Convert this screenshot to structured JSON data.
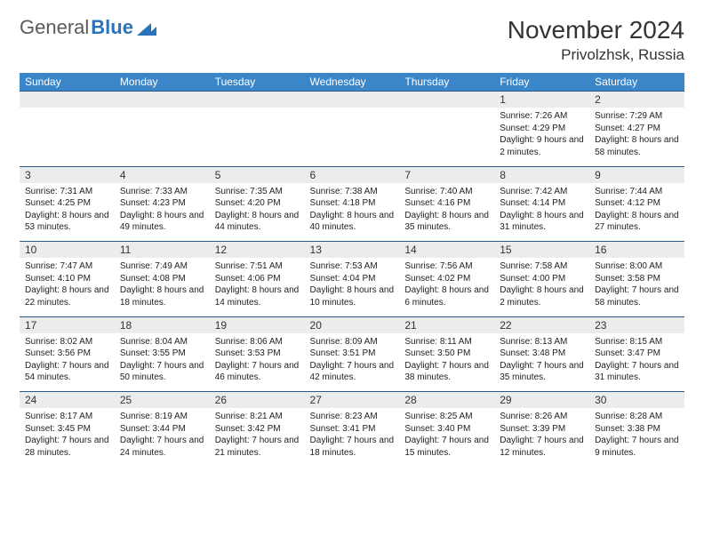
{
  "logo": {
    "text1": "General",
    "text2": "Blue"
  },
  "header": {
    "month": "November 2024",
    "location": "Privolzhsk, Russia"
  },
  "colors": {
    "header_bg": "#3a86c8",
    "header_text": "#ffffff",
    "daynum_bg": "#ececec",
    "border": "#2b5a8a",
    "logo_gray": "#5a5a5a",
    "logo_blue": "#2b73b8",
    "text": "#333333"
  },
  "weekdays": [
    "Sunday",
    "Monday",
    "Tuesday",
    "Wednesday",
    "Thursday",
    "Friday",
    "Saturday"
  ],
  "days": [
    {
      "n": 1,
      "sunrise": "7:26 AM",
      "sunset": "4:29 PM",
      "dayh": 9,
      "daym": 2
    },
    {
      "n": 2,
      "sunrise": "7:29 AM",
      "sunset": "4:27 PM",
      "dayh": 8,
      "daym": 58
    },
    {
      "n": 3,
      "sunrise": "7:31 AM",
      "sunset": "4:25 PM",
      "dayh": 8,
      "daym": 53
    },
    {
      "n": 4,
      "sunrise": "7:33 AM",
      "sunset": "4:23 PM",
      "dayh": 8,
      "daym": 49
    },
    {
      "n": 5,
      "sunrise": "7:35 AM",
      "sunset": "4:20 PM",
      "dayh": 8,
      "daym": 44
    },
    {
      "n": 6,
      "sunrise": "7:38 AM",
      "sunset": "4:18 PM",
      "dayh": 8,
      "daym": 40
    },
    {
      "n": 7,
      "sunrise": "7:40 AM",
      "sunset": "4:16 PM",
      "dayh": 8,
      "daym": 35
    },
    {
      "n": 8,
      "sunrise": "7:42 AM",
      "sunset": "4:14 PM",
      "dayh": 8,
      "daym": 31
    },
    {
      "n": 9,
      "sunrise": "7:44 AM",
      "sunset": "4:12 PM",
      "dayh": 8,
      "daym": 27
    },
    {
      "n": 10,
      "sunrise": "7:47 AM",
      "sunset": "4:10 PM",
      "dayh": 8,
      "daym": 22
    },
    {
      "n": 11,
      "sunrise": "7:49 AM",
      "sunset": "4:08 PM",
      "dayh": 8,
      "daym": 18
    },
    {
      "n": 12,
      "sunrise": "7:51 AM",
      "sunset": "4:06 PM",
      "dayh": 8,
      "daym": 14
    },
    {
      "n": 13,
      "sunrise": "7:53 AM",
      "sunset": "4:04 PM",
      "dayh": 8,
      "daym": 10
    },
    {
      "n": 14,
      "sunrise": "7:56 AM",
      "sunset": "4:02 PM",
      "dayh": 8,
      "daym": 6
    },
    {
      "n": 15,
      "sunrise": "7:58 AM",
      "sunset": "4:00 PM",
      "dayh": 8,
      "daym": 2
    },
    {
      "n": 16,
      "sunrise": "8:00 AM",
      "sunset": "3:58 PM",
      "dayh": 7,
      "daym": 58
    },
    {
      "n": 17,
      "sunrise": "8:02 AM",
      "sunset": "3:56 PM",
      "dayh": 7,
      "daym": 54
    },
    {
      "n": 18,
      "sunrise": "8:04 AM",
      "sunset": "3:55 PM",
      "dayh": 7,
      "daym": 50
    },
    {
      "n": 19,
      "sunrise": "8:06 AM",
      "sunset": "3:53 PM",
      "dayh": 7,
      "daym": 46
    },
    {
      "n": 20,
      "sunrise": "8:09 AM",
      "sunset": "3:51 PM",
      "dayh": 7,
      "daym": 42
    },
    {
      "n": 21,
      "sunrise": "8:11 AM",
      "sunset": "3:50 PM",
      "dayh": 7,
      "daym": 38
    },
    {
      "n": 22,
      "sunrise": "8:13 AM",
      "sunset": "3:48 PM",
      "dayh": 7,
      "daym": 35
    },
    {
      "n": 23,
      "sunrise": "8:15 AM",
      "sunset": "3:47 PM",
      "dayh": 7,
      "daym": 31
    },
    {
      "n": 24,
      "sunrise": "8:17 AM",
      "sunset": "3:45 PM",
      "dayh": 7,
      "daym": 28
    },
    {
      "n": 25,
      "sunrise": "8:19 AM",
      "sunset": "3:44 PM",
      "dayh": 7,
      "daym": 24
    },
    {
      "n": 26,
      "sunrise": "8:21 AM",
      "sunset": "3:42 PM",
      "dayh": 7,
      "daym": 21
    },
    {
      "n": 27,
      "sunrise": "8:23 AM",
      "sunset": "3:41 PM",
      "dayh": 7,
      "daym": 18
    },
    {
      "n": 28,
      "sunrise": "8:25 AM",
      "sunset": "3:40 PM",
      "dayh": 7,
      "daym": 15
    },
    {
      "n": 29,
      "sunrise": "8:26 AM",
      "sunset": "3:39 PM",
      "dayh": 7,
      "daym": 12
    },
    {
      "n": 30,
      "sunrise": "8:28 AM",
      "sunset": "3:38 PM",
      "dayh": 7,
      "daym": 9
    }
  ],
  "layout": {
    "first_weekday_index": 5,
    "labels": {
      "sunrise": "Sunrise:",
      "sunset": "Sunset:",
      "daylight": "Daylight:"
    }
  }
}
